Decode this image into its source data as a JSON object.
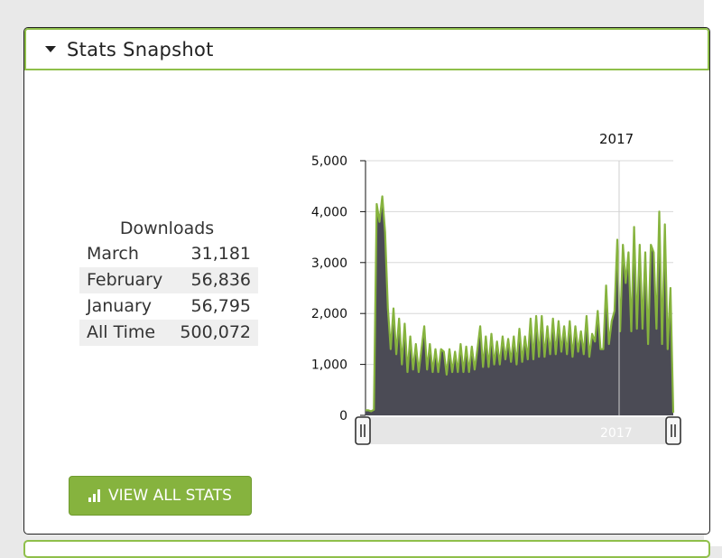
{
  "panel": {
    "title": "Stats Snapshot"
  },
  "stats": {
    "heading": "Downloads",
    "rows": [
      {
        "label": "March",
        "value": "31,181"
      },
      {
        "label": "February",
        "value": "56,836"
      },
      {
        "label": "January",
        "value": "56,795"
      },
      {
        "label": "All Time",
        "value": "500,072"
      }
    ]
  },
  "button": {
    "label": "VIEW ALL STATS",
    "icon": "bar-chart-icon"
  },
  "chart_data": {
    "type": "area",
    "year_label": "2017",
    "navigator_label": "2017",
    "y_ticks": [
      "0",
      "1,000",
      "2,000",
      "3,000",
      "4,000",
      "5,000"
    ],
    "ylim": [
      0,
      5000
    ],
    "colors": {
      "line": "#86b33e",
      "fill": "#4b4b55"
    },
    "series": [
      {
        "values": [
          100,
          100,
          80,
          110,
          4150,
          3800,
          4300,
          3600,
          2100,
          1300,
          2100,
          1200,
          1900,
          1000,
          1800,
          850,
          1550,
          900,
          1400,
          850,
          1300,
          1750,
          900,
          1400,
          850,
          1300,
          850,
          1300,
          1250,
          800,
          1300,
          850,
          1250,
          850,
          1400,
          850,
          1350,
          850,
          1350,
          900,
          1300,
          1750,
          950,
          1550,
          950,
          1600,
          1000,
          1450,
          1000,
          1550,
          1100,
          1500,
          1050,
          1550,
          1000,
          1700,
          1050,
          1550,
          1100,
          1900,
          1100,
          1950,
          1150,
          1950,
          1150,
          1750,
          1200,
          1900,
          1200,
          1850,
          1250,
          1750,
          1200,
          1850,
          1150,
          1750,
          1250,
          1650,
          1200,
          1950,
          1150,
          1600,
          1450,
          2050,
          1300,
          1300,
          2550,
          1400,
          1850,
          2050,
          3450,
          1650,
          3350,
          2600,
          3200,
          1650,
          3700,
          1700,
          3350,
          1700,
          3200,
          1400,
          3350,
          3200,
          1700,
          4000,
          1400,
          3750,
          1300,
          2500,
          50
        ]
      }
    ]
  }
}
